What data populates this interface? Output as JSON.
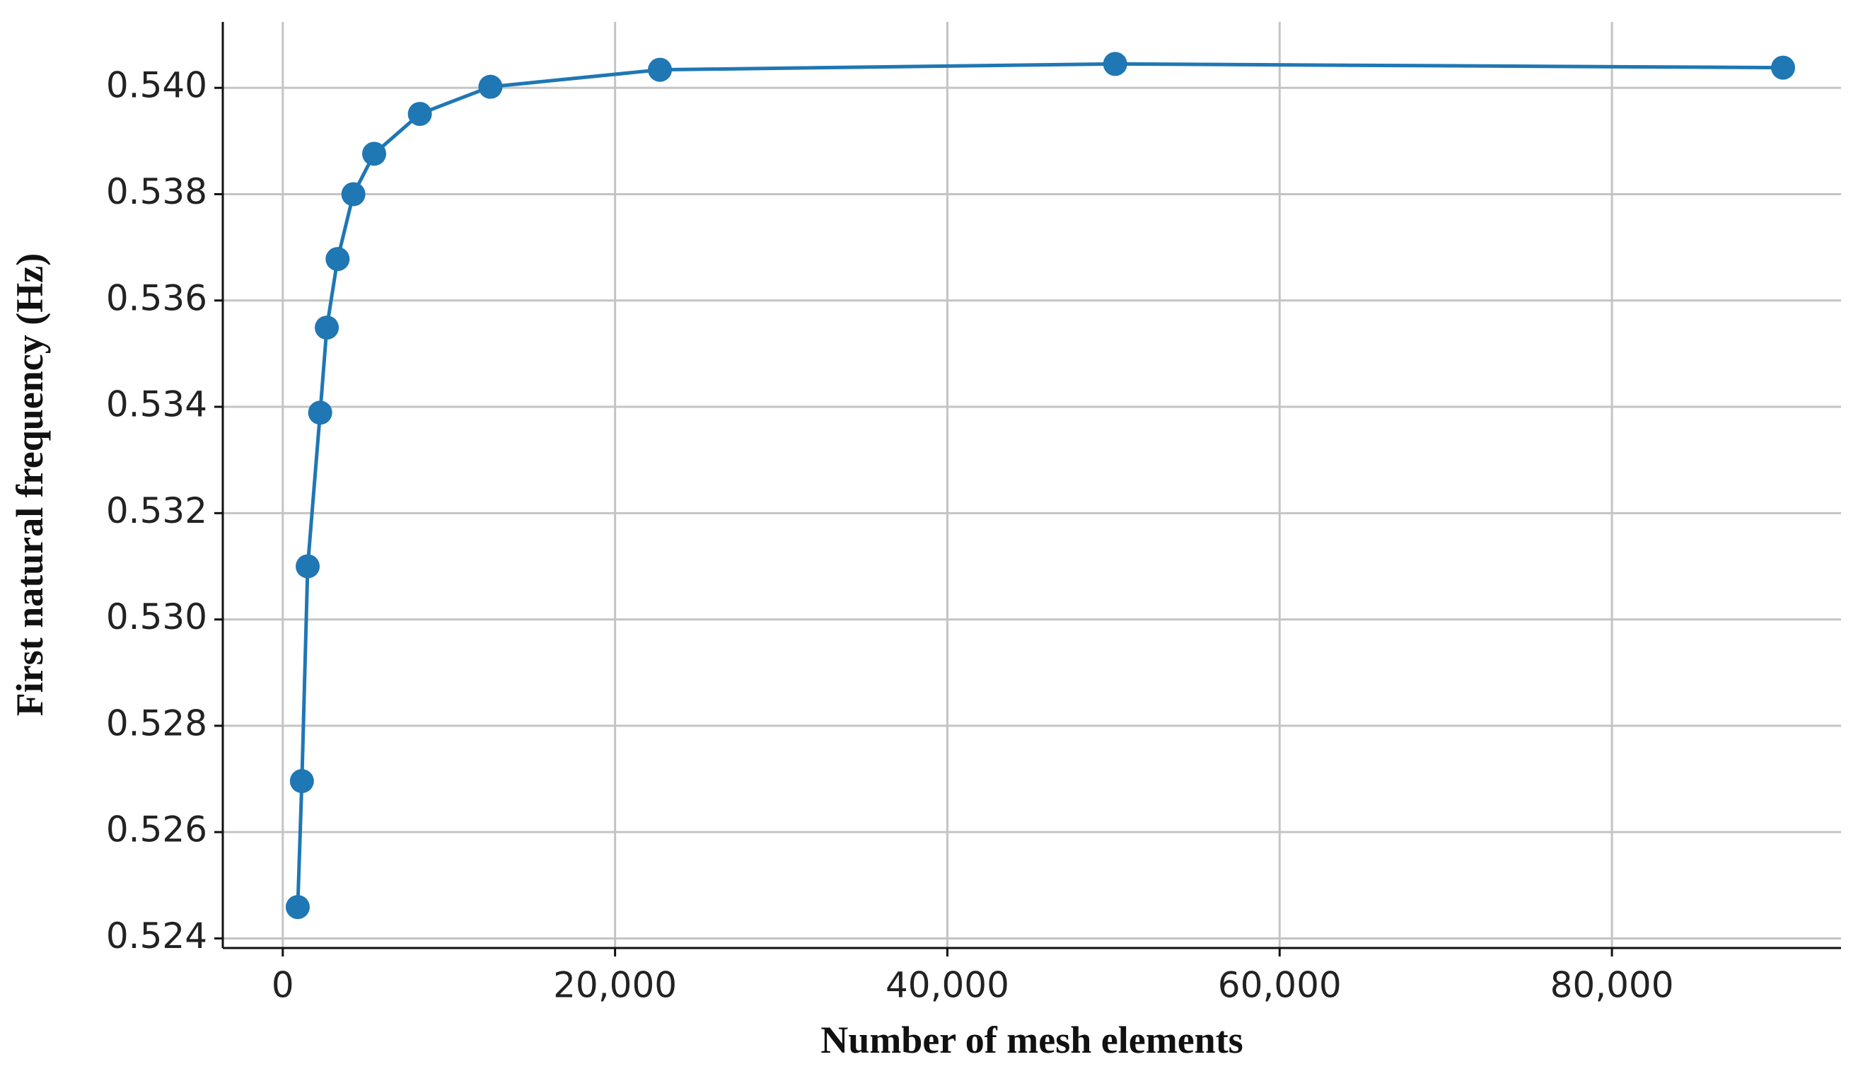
{
  "chart_data": {
    "type": "line",
    "x_label": "Number of mesh elements",
    "y_label": "First natural frequency (Hz)",
    "x": [
      900,
      1150,
      1500,
      2250,
      2650,
      3300,
      4250,
      5500,
      8250,
      12500,
      22700,
      50100,
      90300
    ],
    "series": [
      {
        "color": "#1f77b4",
        "values": [
          0.52459,
          0.52696,
          0.531,
          0.53389,
          0.53549,
          0.53678,
          0.538,
          0.53876,
          0.53951,
          0.54002,
          0.54034,
          0.54045,
          0.54038
        ]
      }
    ],
    "xlim": [
      -3610,
      93790
    ],
    "ylim": [
      0.52382,
      0.54124
    ],
    "xticks": [
      0,
      {
        "value": 20000,
        "label": "20,000"
      },
      {
        "value": 40000,
        "label": "40,000"
      },
      {
        "value": 60000,
        "label": "60,000"
      },
      {
        "value": 80000,
        "label": "80,000"
      }
    ],
    "yticks": [
      0.524,
      0.526,
      0.528,
      {
        "value": 0.53,
        "label": "0.530"
      },
      0.532,
      0.534,
      0.536,
      0.538,
      {
        "value": 0.54,
        "label": "0.540"
      }
    ],
    "grid": true,
    "markers": true
  }
}
